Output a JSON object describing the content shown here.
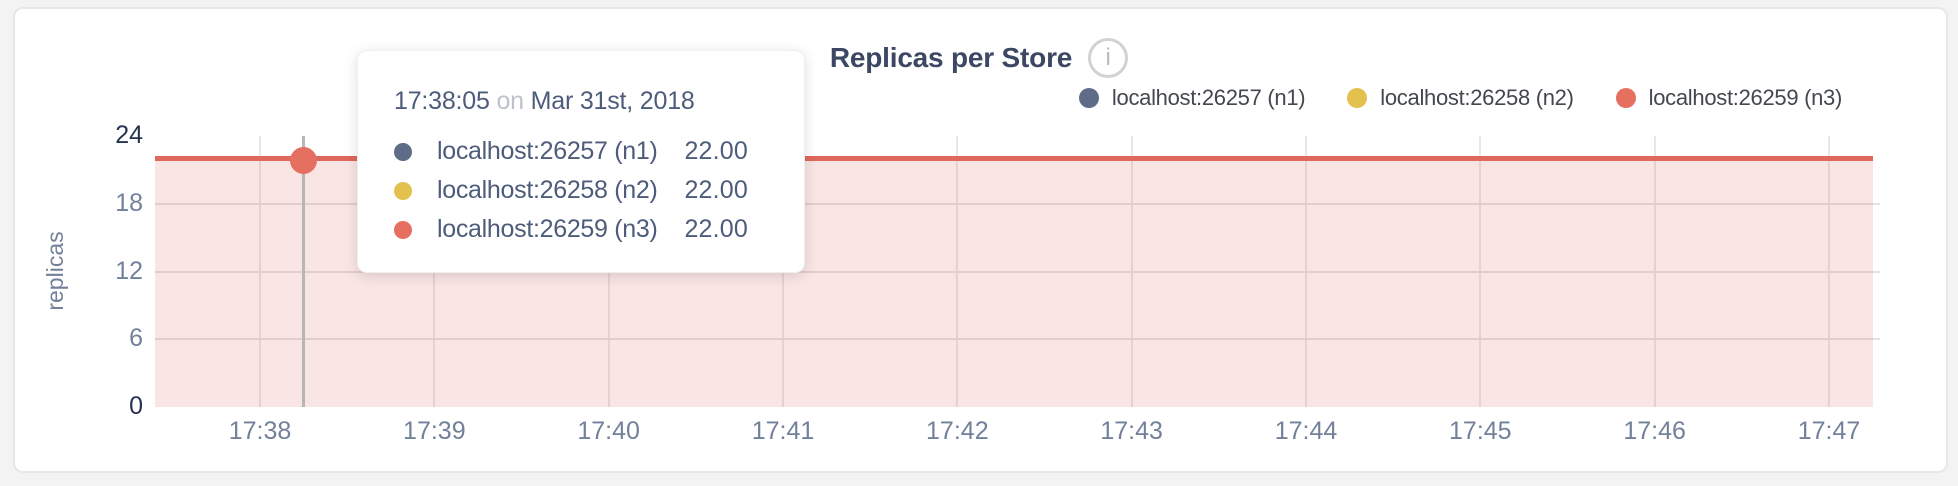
{
  "header": {
    "title": "Replicas per Store",
    "info_icon_glyph": "i"
  },
  "legend": {
    "items": [
      {
        "label": "localhost:26257 (n1)",
        "color": "#5f6c87"
      },
      {
        "label": "localhost:26258 (n2)",
        "color": "#e2c14e"
      },
      {
        "label": "localhost:26259 (n3)",
        "color": "#e5705f"
      }
    ]
  },
  "tooltip": {
    "time": "17:38:05",
    "conj": "on",
    "date": "Mar 31st, 2018",
    "rows": [
      {
        "name": "localhost:26257 (n1)",
        "value": "22.00",
        "color": "#5f6c87"
      },
      {
        "name": "localhost:26258 (n2)",
        "value": "22.00",
        "color": "#e2c14e"
      },
      {
        "name": "localhost:26259 (n3)",
        "value": "22.00",
        "color": "#e5705f"
      }
    ]
  },
  "chart_data": {
    "type": "area",
    "title": "Replicas per Store",
    "xlabel": "",
    "ylabel": "replicas",
    "ylim": [
      0,
      24
    ],
    "y_ticks": [
      0,
      6,
      12,
      18,
      24
    ],
    "x_ticks": [
      "17:38",
      "17:39",
      "17:40",
      "17:41",
      "17:42",
      "17:43",
      "17:44",
      "17:45",
      "17:46",
      "17:47"
    ],
    "grid": true,
    "legend_position": "top-right",
    "series": [
      {
        "name": "localhost:26257 (n1)",
        "color": "#5f6c87",
        "values": [
          22,
          22,
          22,
          22,
          22,
          22,
          22,
          22,
          22,
          22
        ]
      },
      {
        "name": "localhost:26258 (n2)",
        "color": "#e2c14e",
        "values": [
          22,
          22,
          22,
          22,
          22,
          22,
          22,
          22,
          22,
          22
        ]
      },
      {
        "name": "localhost:26259 (n3)",
        "color": "#e5705f",
        "values": [
          22,
          22,
          22,
          22,
          22,
          22,
          22,
          22,
          22,
          22
        ]
      }
    ],
    "hovered_point": {
      "time": "17:38:05",
      "value": 22.0
    },
    "line_color": "#e0675c",
    "fill_color": "rgba(221,102,86,0.17)"
  },
  "colors": {
    "page_bg": "#f4f3f3",
    "card_bg": "#ffffff",
    "accent_red": "#e0675c",
    "grid": "#e5e5e5",
    "crosshair": "#b7b7b7",
    "axis_dark": "#26334f",
    "axis_dim": "#72809a"
  }
}
